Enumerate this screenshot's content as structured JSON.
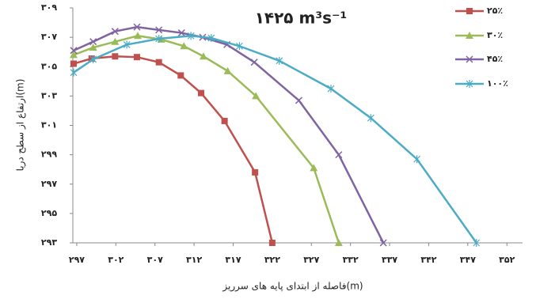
{
  "chart_data": {
    "type": "line",
    "title": "۱۴۲۵ m³s⁻¹",
    "x_label": "فاصله از ابتدای پایه های سرریز(m)",
    "y_label": "ارتفاع از سطح دریا(m)",
    "xlim": [
      296.5,
      354
    ],
    "ylim": [
      293,
      309
    ],
    "xticks": [
      {
        "value": 297,
        "label": "۲۹۷"
      },
      {
        "value": 302,
        "label": "۳۰۲"
      },
      {
        "value": 307,
        "label": "۳۰۷"
      },
      {
        "value": 312,
        "label": "۳۱۲"
      },
      {
        "value": 317,
        "label": "۳۱۷"
      },
      {
        "value": 322,
        "label": "۳۲۲"
      },
      {
        "value": 327,
        "label": "۳۲۷"
      },
      {
        "value": 332,
        "label": "۳۳۲"
      },
      {
        "value": 337,
        "label": "۳۳۷"
      },
      {
        "value": 342,
        "label": "۳۴۲"
      },
      {
        "value": 347,
        "label": "۳۴۷"
      },
      {
        "value": 352,
        "label": "۳۵۲"
      }
    ],
    "yticks": [
      {
        "value": 293,
        "label": "۲۹۳"
      },
      {
        "value": 295,
        "label": "۲۹۵"
      },
      {
        "value": 297,
        "label": "۲۹۷"
      },
      {
        "value": 299,
        "label": "۲۹۹"
      },
      {
        "value": 301,
        "label": "۳۰۱"
      },
      {
        "value": 303,
        "label": "۳۰۳"
      },
      {
        "value": 305,
        "label": "۳۰۵"
      },
      {
        "value": 307,
        "label": "۳۰۷"
      },
      {
        "value": 309,
        "label": "۳۰۹"
      }
    ],
    "legend": "top-right",
    "series": [
      {
        "name": "۲۵٪",
        "color": "#c0504d",
        "marker": "square",
        "x": [
          296.6,
          298.9,
          301.9,
          304.7,
          307.5,
          310.3,
          312.9,
          315.9,
          319.8,
          322.0
        ],
        "values": [
          305.2,
          305.55,
          305.7,
          305.65,
          305.3,
          304.4,
          303.2,
          301.3,
          297.8,
          293.0
        ]
      },
      {
        "name": "۳۰٪",
        "color": "#9bbb59",
        "marker": "triangle",
        "x": [
          296.6,
          299.1,
          301.9,
          304.8,
          307.8,
          310.7,
          313.2,
          316.3,
          319.9,
          327.3,
          330.5
        ],
        "values": [
          305.8,
          306.3,
          306.7,
          307.1,
          306.85,
          306.4,
          305.7,
          304.7,
          303.0,
          298.1,
          293.0
        ]
      },
      {
        "name": "۴۵٪",
        "color": "#8064a2",
        "marker": "x",
        "x": [
          296.6,
          299.1,
          301.9,
          304.7,
          307.5,
          310.4,
          313.1,
          316.2,
          319.7,
          325.4,
          330.5,
          336.2
        ],
        "values": [
          306.1,
          306.7,
          307.4,
          307.7,
          307.5,
          307.3,
          307.0,
          306.5,
          305.3,
          302.7,
          299.0,
          293.0
        ]
      },
      {
        "name": "۱۰۰٪",
        "color": "#4bacc6",
        "marker": "star",
        "x": [
          296.6,
          299.1,
          303.4,
          307.5,
          311.6,
          314.2,
          317.8,
          322.9,
          329.5,
          334.6,
          340.5,
          348.1
        ],
        "values": [
          304.6,
          305.5,
          306.5,
          306.9,
          307.1,
          306.95,
          306.4,
          305.4,
          303.5,
          301.5,
          298.7,
          293.0
        ]
      }
    ]
  }
}
